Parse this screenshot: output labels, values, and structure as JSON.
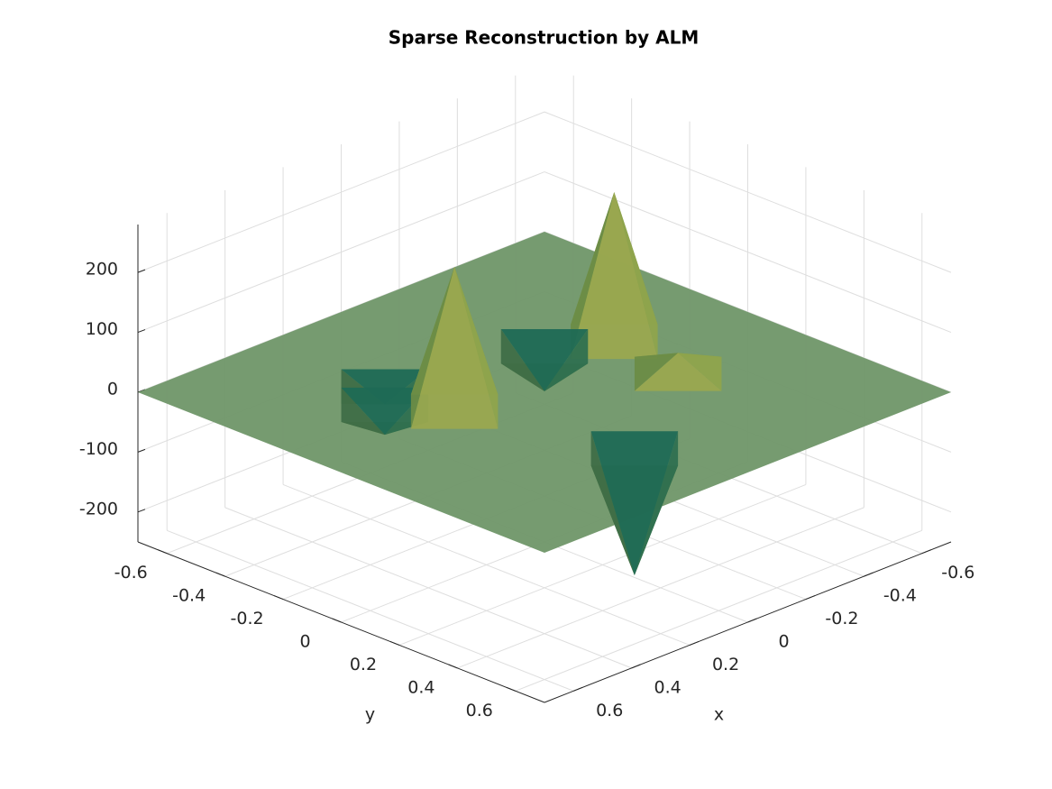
{
  "chart_data": {
    "type": "surface",
    "title": "Sparse Reconstruction by ALM",
    "x_label": "x",
    "y_label": "y",
    "x": [
      0.24,
      -0.34,
      0.09,
      -0.2,
      -0.31,
      0.33,
      0.25
    ],
    "y": [
      -0.07,
      -0.1,
      0.4,
      -0.2,
      0.15,
      -0.22,
      -0.3
    ],
    "z": [
      242,
      250,
      -212,
      -75,
      35,
      -50,
      -30
    ],
    "xlim": [
      -0.7,
      0.7
    ],
    "ylim": [
      -0.7,
      0.7
    ],
    "zlim": [
      -250,
      280
    ],
    "xticks": [
      -0.6,
      -0.4,
      -0.2,
      0,
      0.2,
      0.4,
      0.6
    ],
    "yticks": [
      -0.6,
      -0.4,
      -0.2,
      0,
      0.2,
      0.4,
      0.6
    ],
    "zticks": [
      -200,
      -100,
      0,
      100,
      200
    ],
    "grid": true,
    "color": "#6f9668"
  }
}
